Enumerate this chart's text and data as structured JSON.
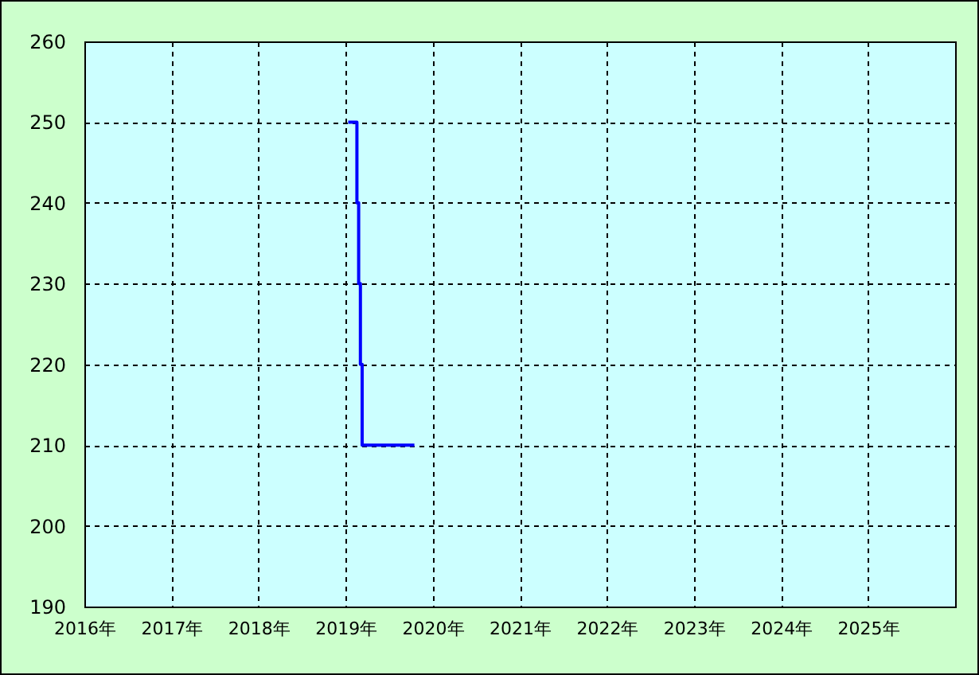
{
  "chart_data": {
    "type": "step",
    "x": [
      2019.03,
      2019.13,
      2019.15,
      2019.17,
      2019.19,
      2019.79
    ],
    "series": [
      {
        "color": "#0000ff",
        "values": [
          250,
          240,
          230,
          220,
          210,
          210
        ]
      }
    ],
    "xlim": [
      2016,
      2026
    ],
    "xticks": [
      {
        "value": 2016,
        "label": "2016年"
      },
      {
        "value": 2017,
        "label": "2017年"
      },
      {
        "value": 2018,
        "label": "2018年"
      },
      {
        "value": 2019,
        "label": "2019年"
      },
      {
        "value": 2020,
        "label": "2020年"
      },
      {
        "value": 2021,
        "label": "2021年"
      },
      {
        "value": 2022,
        "label": "2022年"
      },
      {
        "value": 2023,
        "label": "2023年"
      },
      {
        "value": 2024,
        "label": "2024年"
      },
      {
        "value": 2025,
        "label": "2025年"
      },
      {
        "value": 2026,
        "label": null
      }
    ],
    "ylim": [
      190,
      260
    ],
    "yticks": [
      190,
      200,
      210,
      220,
      230,
      240,
      250,
      260
    ],
    "grid": true,
    "marker": "none",
    "line_style": "solid"
  }
}
